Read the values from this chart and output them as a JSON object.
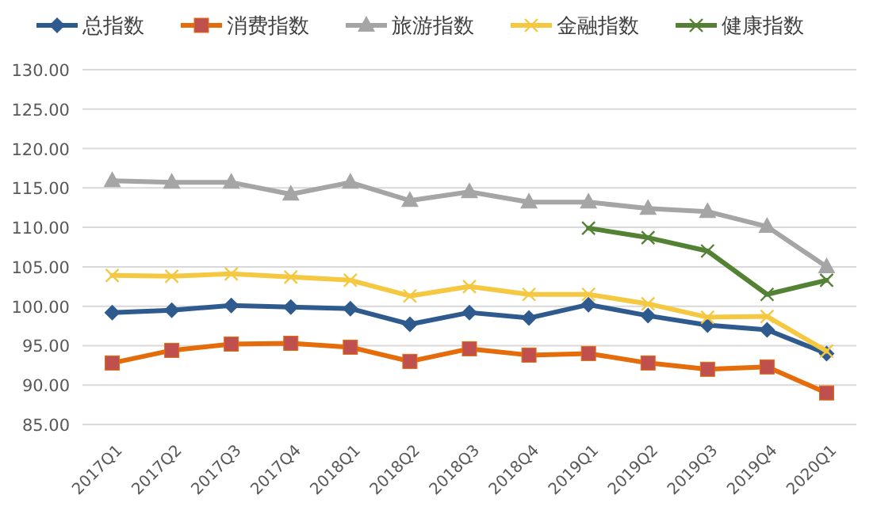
{
  "chart_data": {
    "type": "line",
    "categories": [
      "2017Q1",
      "2017Q2",
      "2017Q3",
      "2017Q4",
      "2018Q1",
      "2018Q2",
      "2018Q3",
      "2018Q4",
      "2019Q1",
      "2019Q2",
      "2019Q3",
      "2019Q4",
      "2020Q1"
    ],
    "ylim": [
      85,
      130
    ],
    "yticks": [
      {
        "value": 85,
        "label": "85.00"
      },
      {
        "value": 90,
        "label": "90.00"
      },
      {
        "value": 95,
        "label": "95.00"
      },
      {
        "value": 100,
        "label": "100.00"
      },
      {
        "value": 105,
        "label": "105.00"
      },
      {
        "value": 110,
        "label": "110.00"
      },
      {
        "value": 115,
        "label": "115.00"
      },
      {
        "value": 120,
        "label": "120.00"
      },
      {
        "value": 125,
        "label": "125.00"
      },
      {
        "value": 130,
        "label": "130.00"
      }
    ],
    "grid": "y",
    "legend": "top",
    "series": [
      {
        "name": "总指数",
        "color": "#2e5a8e",
        "marker": "diamond",
        "values": [
          99.2,
          99.5,
          100.1,
          99.9,
          99.7,
          97.7,
          99.2,
          98.5,
          100.2,
          98.8,
          97.6,
          97.0,
          94.0
        ]
      },
      {
        "name": "消费指数",
        "color": "#e46c0a",
        "marker": "square",
        "values": [
          92.8,
          94.4,
          95.2,
          95.3,
          94.8,
          93.0,
          94.6,
          93.8,
          94.0,
          92.8,
          92.0,
          92.3,
          89.0
        ]
      },
      {
        "name": "旅游指数",
        "color": "#a5a5a5",
        "marker": "triangle",
        "values": [
          115.9,
          115.7,
          115.7,
          114.2,
          115.7,
          113.4,
          114.5,
          113.2,
          113.2,
          112.4,
          112.0,
          110.1,
          105.0
        ]
      },
      {
        "name": "金融指数",
        "color": "#f5c842",
        "marker": "cross",
        "values": [
          103.9,
          103.8,
          104.1,
          103.7,
          103.3,
          101.3,
          102.5,
          101.5,
          101.5,
          100.3,
          98.6,
          98.7,
          94.3
        ]
      },
      {
        "name": "健康指数",
        "color": "#548235",
        "marker": "cross",
        "values": [
          null,
          null,
          null,
          null,
          null,
          null,
          null,
          null,
          109.9,
          108.7,
          107.0,
          101.5,
          103.3
        ]
      }
    ]
  }
}
